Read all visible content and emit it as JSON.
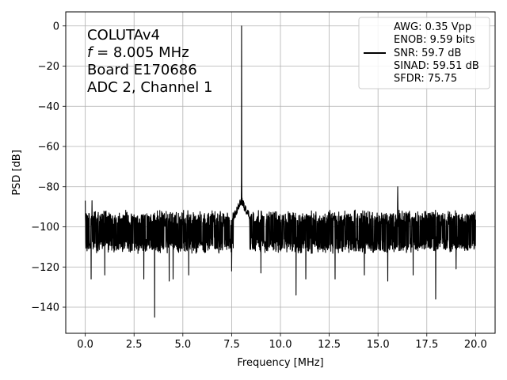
{
  "chart_data": {
    "type": "line",
    "xlabel": "Frequency [MHz]",
    "ylabel": "PSD [dB]",
    "xlim": [
      -1.0,
      21.0
    ],
    "ylim": [
      -153,
      7
    ],
    "xticks": [
      0.0,
      2.5,
      5.0,
      7.5,
      10.0,
      12.5,
      15.0,
      17.5,
      20.0
    ],
    "xtick_labels": [
      "0.0",
      "2.5",
      "5.0",
      "7.5",
      "10.0",
      "12.5",
      "15.0",
      "17.5",
      "20.0"
    ],
    "yticks": [
      0,
      -20,
      -40,
      -60,
      -80,
      -100,
      -120,
      -140
    ],
    "ytick_labels": [
      "0",
      "−20",
      "−40",
      "−60",
      "−80",
      "−100",
      "−120",
      "−140"
    ],
    "grid": true,
    "legend_position": "top-right",
    "line_color": "#000000",
    "annotation": {
      "lines": [
        "COLUTAv4",
        "= 8.005 MHz",
        "Board E170686",
        "ADC 2, Channel 1"
      ],
      "f_symbol": "f"
    },
    "series": [
      {
        "legend_lines": [
          "AWG: 0.35 Vpp",
          "ENOB: 9.59 bits",
          "SNR: 59.7 dB",
          "SINAD: 59.51 dB",
          "SFDR: 75.75"
        ],
        "noise_floor": -102,
        "noise_band": [
          -112,
          -93
        ],
        "noise_dips": [
          {
            "x": 0.3,
            "y": -126
          },
          {
            "x": 1.0,
            "y": -124
          },
          {
            "x": 1.0,
            "y": -124
          },
          {
            "x": 3.0,
            "y": -126
          },
          {
            "x": 3.55,
            "y": -145
          },
          {
            "x": 4.3,
            "y": -127
          },
          {
            "x": 4.5,
            "y": -126
          },
          {
            "x": 5.3,
            "y": -124
          },
          {
            "x": 7.5,
            "y": -122
          },
          {
            "x": 9.0,
            "y": -123
          },
          {
            "x": 10.8,
            "y": -134
          },
          {
            "x": 11.3,
            "y": -126
          },
          {
            "x": 12.8,
            "y": -126
          },
          {
            "x": 14.3,
            "y": -124
          },
          {
            "x": 15.5,
            "y": -127
          },
          {
            "x": 16.8,
            "y": -124
          },
          {
            "x": 17.95,
            "y": -136
          },
          {
            "x": 19.0,
            "y": -121
          }
        ],
        "peaks": [
          {
            "x": 0.0,
            "y": -87
          },
          {
            "x": 0.35,
            "y": -87
          },
          {
            "x": 8.005,
            "y": 0
          },
          {
            "x": 16.01,
            "y": -80
          }
        ],
        "signal_skirt": {
          "x_range": [
            7.6,
            8.4
          ],
          "y": -85
        }
      }
    ]
  }
}
